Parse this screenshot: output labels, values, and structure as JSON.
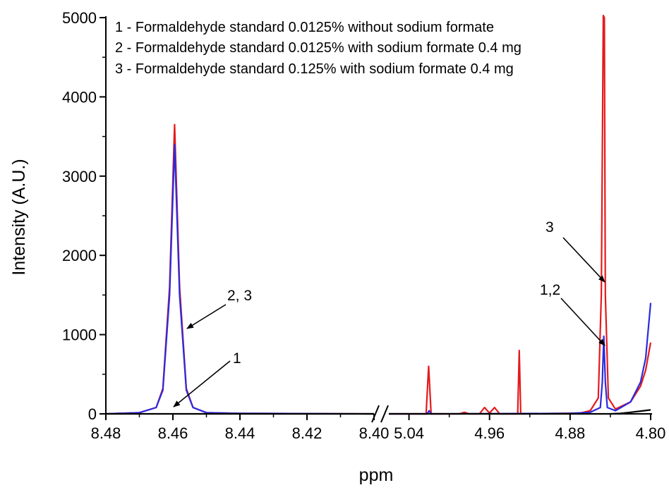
{
  "chart_data": {
    "type": "line",
    "xlabel": "ppm",
    "ylabel": "Intensity (A.U.)",
    "ylim": [
      0,
      5000
    ],
    "y_ticks": [
      "0",
      "1000",
      "2000",
      "3000",
      "4000",
      "5000"
    ],
    "x_axis_broken": true,
    "x_reversed": true,
    "segments": [
      {
        "xlim": [
          8.48,
          8.4
        ],
        "ticks": [
          "8.48",
          "8.46",
          "8.44",
          "8.42",
          "8.40"
        ]
      },
      {
        "xlim": [
          5.06,
          4.8
        ],
        "ticks": [
          "5.04",
          "4.96",
          "4.88",
          "4.80"
        ]
      }
    ],
    "legend_items": [
      "1 - Formaldehyde standard 0.0125% without sodium formate",
      "2 - Formaldehyde standard 0.0125% with sodium formate 0.4 mg",
      "3 - Formaldehyde standard 0.125% with sodium formate 0.4 mg"
    ],
    "legend_position": "top",
    "annotations": [
      "2, 3",
      "1",
      "3",
      "1,2"
    ],
    "colors": {
      "series1": "#000000",
      "series2": "#2a2ae0",
      "series3": "#e41a1c",
      "series2_overlap": "#7a3a9a"
    },
    "series": [
      {
        "label_number": "1",
        "color": "#000000",
        "seg1": [
          [
            8.48,
            0
          ],
          [
            8.4,
            0
          ]
        ],
        "seg2": [
          [
            5.06,
            0
          ],
          [
            4.84,
            0
          ],
          [
            4.83,
            5
          ],
          [
            4.82,
            20
          ],
          [
            4.81,
            35
          ],
          [
            4.8,
            50
          ]
        ]
      },
      {
        "label_number": "2",
        "color": "#2a2ae0",
        "seg1": [
          [
            8.48,
            0
          ],
          [
            8.47,
            15
          ],
          [
            8.465,
            80
          ],
          [
            8.463,
            300
          ],
          [
            8.461,
            1500
          ],
          [
            8.4595,
            3400
          ],
          [
            8.458,
            1500
          ],
          [
            8.456,
            300
          ],
          [
            8.454,
            80
          ],
          [
            8.45,
            15
          ],
          [
            8.44,
            5
          ],
          [
            8.4,
            0
          ]
        ],
        "seg2": [
          [
            5.06,
            0
          ],
          [
            5.022,
            0
          ],
          [
            5.02,
            40
          ],
          [
            5.018,
            0
          ],
          [
            4.88,
            5
          ],
          [
            4.86,
            20
          ],
          [
            4.85,
            80
          ],
          [
            4.848,
            400
          ],
          [
            4.8465,
            980
          ],
          [
            4.845,
            400
          ],
          [
            4.843,
            80
          ],
          [
            4.835,
            40
          ],
          [
            4.82,
            150
          ],
          [
            4.81,
            400
          ],
          [
            4.805,
            700
          ],
          [
            4.8,
            1400
          ]
        ]
      },
      {
        "label_number": "3",
        "color": "#e41a1c",
        "seg1": [
          [
            8.48,
            0
          ],
          [
            8.47,
            15
          ],
          [
            8.465,
            80
          ],
          [
            8.463,
            320
          ],
          [
            8.461,
            1600
          ],
          [
            8.4595,
            3650
          ],
          [
            8.458,
            1600
          ],
          [
            8.456,
            320
          ],
          [
            8.454,
            80
          ],
          [
            8.45,
            15
          ],
          [
            8.44,
            5
          ],
          [
            8.4,
            0
          ]
        ],
        "seg2": [
          [
            5.06,
            0
          ],
          [
            5.023,
            0
          ],
          [
            5.0205,
            600
          ],
          [
            5.018,
            0
          ],
          [
            4.99,
            0
          ],
          [
            4.985,
            20
          ],
          [
            4.98,
            0
          ],
          [
            4.97,
            0
          ],
          [
            4.965,
            80
          ],
          [
            4.96,
            10
          ],
          [
            4.955,
            80
          ],
          [
            4.95,
            0
          ],
          [
            4.932,
            0
          ],
          [
            4.9305,
            800
          ],
          [
            4.929,
            0
          ],
          [
            4.87,
            10
          ],
          [
            4.86,
            40
          ],
          [
            4.852,
            200
          ],
          [
            4.849,
            1500
          ],
          [
            4.847,
            5200
          ],
          [
            4.846,
            5000
          ],
          [
            4.845,
            1500
          ],
          [
            4.842,
            200
          ],
          [
            4.835,
            60
          ],
          [
            4.82,
            150
          ],
          [
            4.81,
            350
          ],
          [
            4.805,
            550
          ],
          [
            4.8,
            900
          ]
        ]
      }
    ]
  }
}
